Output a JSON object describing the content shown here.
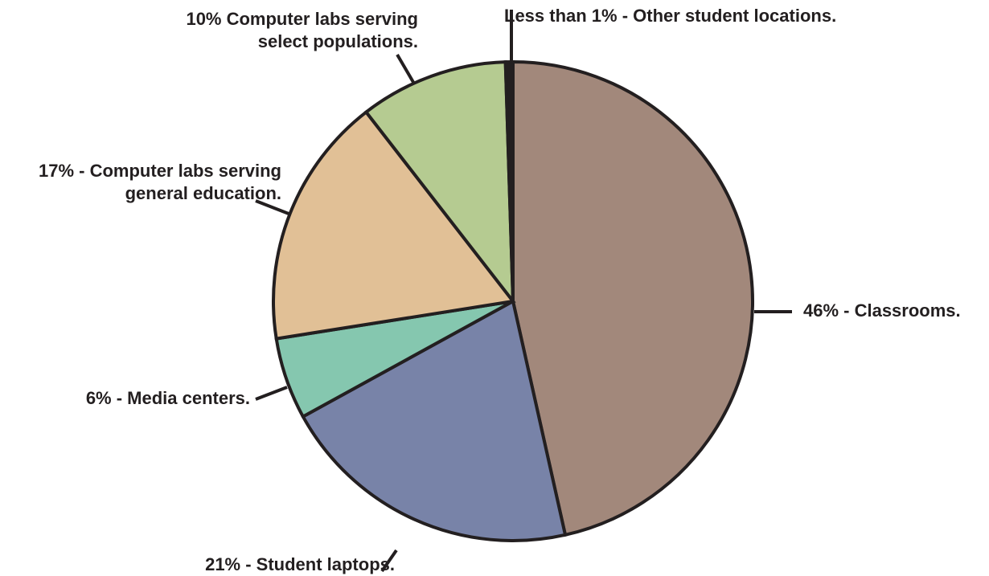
{
  "chart_data": {
    "type": "pie",
    "start_angle_deg": 0,
    "direction": "clockwise",
    "outline_color": "#231f20",
    "slices": [
      {
        "label": "46% - Classrooms.",
        "value": 46.5,
        "color": "#a2887b",
        "label_lines": [
          "46% - Classrooms."
        ]
      },
      {
        "label": "21% - Student laptops.",
        "value": 20.5,
        "color": "#7883a8",
        "label_lines": [
          "21% - Student laptops."
        ]
      },
      {
        "label": "6% - Media centers.",
        "value": 5.5,
        "color": "#85c7af",
        "label_lines": [
          "6% - Media centers."
        ]
      },
      {
        "label": "17% - Computer labs serving general education.",
        "value": 17,
        "color": "#e1c096",
        "label_lines": [
          "17% - Computer labs serving",
          "general education."
        ]
      },
      {
        "label": "10% Computer labs serving select populations.",
        "value": 10,
        "color": "#b5cb91",
        "label_lines": [
          "10% Computer labs serving",
          "select populations."
        ]
      },
      {
        "label": "Less than 1% - Other student locations.",
        "value": 0.5,
        "color": "#231f20",
        "label_lines": [
          "Less than 1% - Other student locations."
        ]
      }
    ]
  }
}
